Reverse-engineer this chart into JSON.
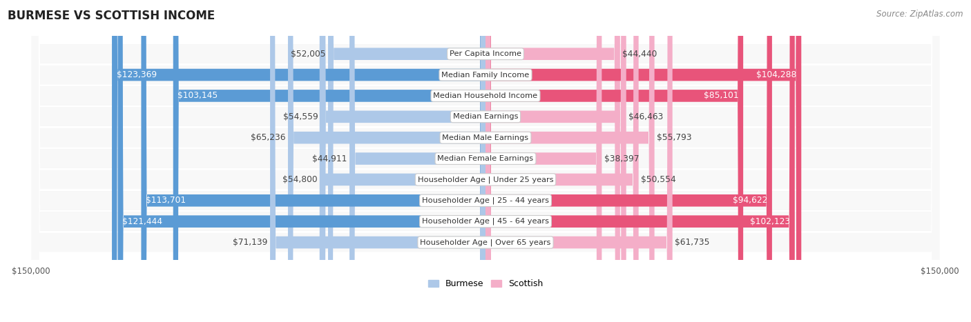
{
  "title": "BURMESE VS SCOTTISH INCOME",
  "source": "Source: ZipAtlas.com",
  "categories": [
    "Per Capita Income",
    "Median Family Income",
    "Median Household Income",
    "Median Earnings",
    "Median Male Earnings",
    "Median Female Earnings",
    "Householder Age | Under 25 years",
    "Householder Age | 25 - 44 years",
    "Householder Age | 45 - 64 years",
    "Householder Age | Over 65 years"
  ],
  "burmese_values": [
    52005,
    123369,
    103145,
    54559,
    65236,
    44911,
    54800,
    113701,
    121444,
    71139
  ],
  "scottish_values": [
    44440,
    104288,
    85101,
    46463,
    55793,
    38397,
    50554,
    94622,
    102123,
    61735
  ],
  "burmese_labels": [
    "$52,005",
    "$123,369",
    "$103,145",
    "$54,559",
    "$65,236",
    "$44,911",
    "$54,800",
    "$113,701",
    "$121,444",
    "$71,139"
  ],
  "scottish_labels": [
    "$44,440",
    "$104,288",
    "$85,101",
    "$46,463",
    "$55,793",
    "$38,397",
    "$50,554",
    "$94,622",
    "$102,123",
    "$61,735"
  ],
  "max_val": 150000,
  "burmese_color_light": "#adc8e8",
  "burmese_color_dark": "#5b9bd5",
  "scottish_color_light": "#f4aec8",
  "scottish_color_dark": "#e8547a",
  "threshold_dark_burmese": 90000,
  "threshold_dark_scottish": 80000,
  "label_fontsize": 8.8,
  "cat_fontsize": 8.2,
  "title_fontsize": 12,
  "source_fontsize": 8.5,
  "tick_fontsize": 8.5
}
